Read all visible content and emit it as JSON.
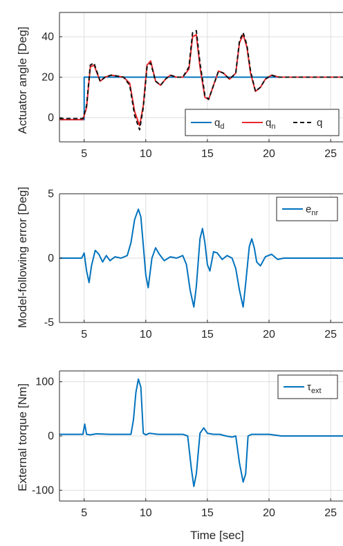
{
  "colors": {
    "blue": "#0072BD",
    "red": "#E8262B",
    "black": "#111111",
    "grid": "#dedede",
    "axis": "#262626"
  },
  "chart_data": [
    {
      "type": "line",
      "ylabel": "Actuator angle [Deg]",
      "xlabel": "",
      "xlim": [
        3,
        26
      ],
      "ylim": [
        -12,
        52
      ],
      "xticks": [
        "5",
        "10",
        "15",
        "20",
        "25"
      ],
      "yticks": [
        "0",
        "20",
        "40"
      ],
      "grid": true,
      "legend_position": "bottom-right",
      "legend": [
        {
          "main": "q",
          "sub": "d"
        },
        {
          "main": "q",
          "sub": "n"
        },
        {
          "main": "q",
          "sub": ""
        }
      ],
      "series": [
        {
          "name": "q_d",
          "style": "solid",
          "color": "blue",
          "x": [
            3,
            5,
            5,
            26
          ],
          "y": [
            -1,
            -1,
            20,
            20
          ]
        },
        {
          "name": "q_n",
          "style": "solid",
          "color": "red",
          "x": [
            3,
            4.9,
            5.2,
            5.5,
            5.8,
            6.3,
            6.7,
            7.2,
            7.7,
            8.2,
            8.7,
            9.1,
            9.5,
            9.8,
            10.1,
            10.4,
            10.8,
            11.2,
            11.6,
            12.0,
            12.5,
            13.0,
            13.5,
            13.8,
            14.1,
            14.4,
            14.8,
            15.1,
            15.5,
            15.9,
            16.3,
            16.8,
            17.3,
            17.6,
            17.9,
            18.2,
            18.5,
            18.9,
            19.3,
            19.7,
            20.2,
            20.8,
            21.5,
            26
          ],
          "y": [
            -1,
            -1,
            5,
            25,
            26,
            18,
            20,
            21,
            20.5,
            20,
            17,
            3,
            -4,
            6,
            26,
            28,
            18,
            16,
            19,
            21,
            20,
            20,
            24,
            40,
            41,
            25,
            10,
            9,
            16,
            23,
            22,
            19,
            22,
            37,
            41,
            35,
            22,
            13,
            15,
            19,
            21,
            20,
            20,
            20
          ]
        },
        {
          "name": "q",
          "style": "dashed",
          "color": "black",
          "x": [
            3,
            4.9,
            5.2,
            5.5,
            5.8,
            6.3,
            6.7,
            7.2,
            7.7,
            8.2,
            8.7,
            9.1,
            9.5,
            9.8,
            10.1,
            10.4,
            10.8,
            11.2,
            11.6,
            12.0,
            12.5,
            13.0,
            13.5,
            13.8,
            14.1,
            14.4,
            14.8,
            15.1,
            15.5,
            15.9,
            16.3,
            16.8,
            17.3,
            17.6,
            17.9,
            18.2,
            18.5,
            18.9,
            19.3,
            19.7,
            20.2,
            20.8,
            21.5,
            26
          ],
          "y": [
            -0.5,
            -0.5,
            6,
            26,
            27,
            18,
            20,
            21,
            20.5,
            20,
            16,
            1,
            -6,
            5,
            25,
            27,
            18,
            16,
            19,
            21,
            20,
            20,
            25,
            42,
            43,
            27,
            11,
            9,
            16,
            23,
            22,
            19,
            22,
            38,
            42,
            36,
            23,
            13,
            15,
            19,
            21,
            20,
            20,
            20
          ]
        }
      ]
    },
    {
      "type": "line",
      "ylabel": "Model-following error [Deg]",
      "xlabel": "",
      "xlim": [
        3,
        26
      ],
      "ylim": [
        -5,
        5
      ],
      "xticks": [
        "5",
        "10",
        "15",
        "20",
        "25"
      ],
      "yticks": [
        "-5",
        "0",
        "5"
      ],
      "grid": true,
      "legend_position": "top-right",
      "legend": [
        {
          "main": "e",
          "sub": "nr"
        }
      ],
      "series": [
        {
          "name": "e_nr",
          "style": "solid",
          "color": "blue",
          "x": [
            3,
            4.8,
            5.0,
            5.2,
            5.4,
            5.6,
            5.9,
            6.2,
            6.5,
            6.8,
            7.1,
            7.5,
            8.0,
            8.5,
            8.8,
            9.1,
            9.4,
            9.6,
            9.8,
            10.0,
            10.2,
            10.5,
            10.8,
            11.1,
            11.5,
            12.0,
            12.5,
            13.0,
            13.3,
            13.6,
            13.9,
            14.1,
            14.4,
            14.6,
            14.8,
            15.0,
            15.2,
            15.5,
            15.8,
            16.2,
            16.6,
            17.0,
            17.3,
            17.6,
            17.9,
            18.1,
            18.4,
            18.6,
            18.8,
            19.0,
            19.3,
            19.7,
            20.2,
            20.7,
            21.2,
            26
          ],
          "y": [
            0,
            0,
            0.4,
            -1.0,
            -1.9,
            -0.6,
            0.6,
            0.3,
            -0.3,
            0.2,
            -0.2,
            0.1,
            0,
            0.2,
            1.2,
            3.0,
            3.8,
            3.2,
            1.0,
            -1.3,
            -2.3,
            0,
            0.8,
            0.3,
            -0.2,
            0.1,
            0,
            0.2,
            -0.5,
            -2.5,
            -3.8,
            -2.2,
            1.5,
            2.3,
            1.2,
            -0.5,
            -1.0,
            0.5,
            0.4,
            -0.1,
            0.2,
            0,
            -0.8,
            -2.5,
            -3.8,
            -2.0,
            0.9,
            1.5,
            0.8,
            -0.3,
            -0.6,
            0.1,
            0.3,
            -0.1,
            0,
            0
          ]
        }
      ]
    },
    {
      "type": "line",
      "ylabel": "External torque [Nm]",
      "xlabel": "Time [sec]",
      "xlim": [
        3,
        26
      ],
      "ylim": [
        -120,
        120
      ],
      "xticks": [
        "5",
        "10",
        "15",
        "20",
        "25"
      ],
      "yticks": [
        "-100",
        "0",
        "100"
      ],
      "grid": true,
      "legend_position": "top-right",
      "legend": [
        {
          "main": "τ",
          "sub": "ext"
        }
      ],
      "series": [
        {
          "name": "tau_ext",
          "style": "solid",
          "color": "blue",
          "x": [
            3,
            4.9,
            5.05,
            5.2,
            5.5,
            6,
            7,
            8,
            8.8,
            9.0,
            9.2,
            9.4,
            9.6,
            9.8,
            10.0,
            10.3,
            11,
            12,
            13,
            13.4,
            13.7,
            13.9,
            14.1,
            14.4,
            14.7,
            15.0,
            15.5,
            16,
            16.5,
            17,
            17.3,
            17.6,
            17.9,
            18.1,
            18.3,
            18.6,
            19,
            20,
            21,
            26
          ],
          "y": [
            3,
            3,
            22,
            3,
            2,
            4,
            3,
            3,
            3,
            30,
            80,
            105,
            90,
            5,
            2,
            5,
            3,
            3,
            3,
            0,
            -60,
            -93,
            -70,
            5,
            15,
            5,
            3,
            3,
            0,
            -2,
            0,
            -50,
            -85,
            -70,
            0,
            3,
            3,
            3,
            0,
            0
          ]
        }
      ]
    }
  ]
}
